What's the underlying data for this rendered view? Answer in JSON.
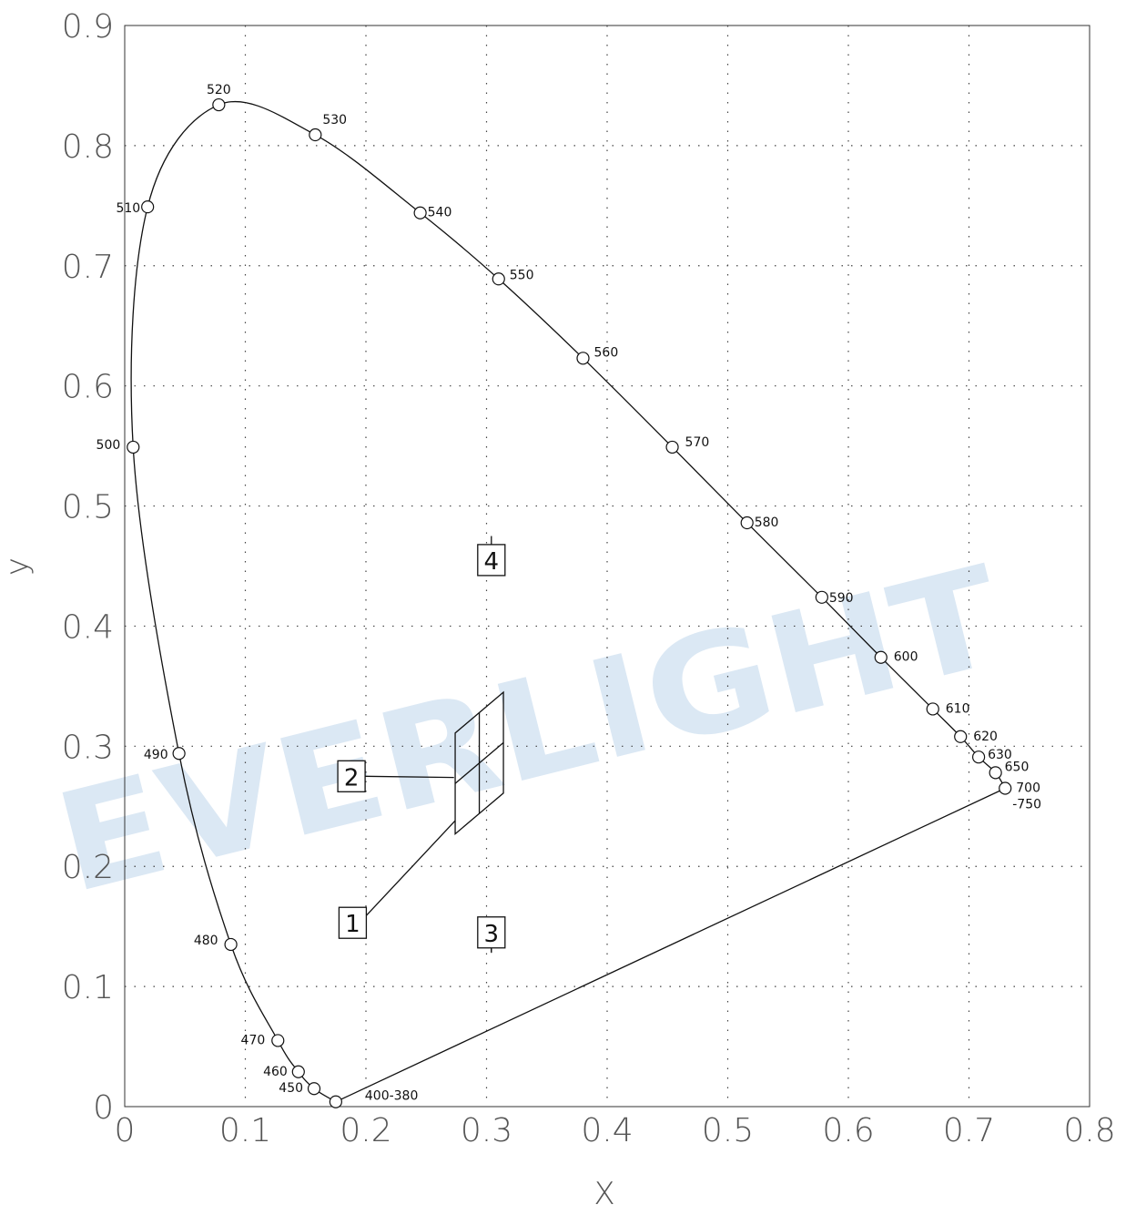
{
  "chart_data": {
    "type": "scatter",
    "title": "",
    "xlabel": "X",
    "ylabel": "y",
    "xlim": [
      0,
      0.8
    ],
    "ylim": [
      0,
      0.9
    ],
    "x_ticks": [
      "0",
      "0.1",
      "0.2",
      "0.3",
      "0.4",
      "0.5",
      "0.6",
      "0.7",
      "0.8"
    ],
    "y_ticks": [
      "0",
      "0.1",
      "0.2",
      "0.3",
      "0.4",
      "0.5",
      "0.6",
      "0.7",
      "0.8",
      "0.9"
    ],
    "grid": true,
    "watermark": "EVERLIGHT",
    "spectral_locus": [
      {
        "label": "400-380",
        "x": 0.175,
        "y": 0.004
      },
      {
        "label": "450",
        "x": 0.157,
        "y": 0.015
      },
      {
        "label": "460",
        "x": 0.144,
        "y": 0.029
      },
      {
        "label": "470",
        "x": 0.127,
        "y": 0.055
      },
      {
        "label": "480",
        "x": 0.088,
        "y": 0.135
      },
      {
        "label": "490",
        "x": 0.045,
        "y": 0.294
      },
      {
        "label": "500",
        "x": 0.007,
        "y": 0.549
      },
      {
        "label": "510",
        "x": 0.019,
        "y": 0.749
      },
      {
        "label": "520",
        "x": 0.078,
        "y": 0.834
      },
      {
        "label": "530",
        "x": 0.158,
        "y": 0.809
      },
      {
        "label": "540",
        "x": 0.245,
        "y": 0.744
      },
      {
        "label": "550",
        "x": 0.31,
        "y": 0.689
      },
      {
        "label": "560",
        "x": 0.38,
        "y": 0.623
      },
      {
        "label": "570",
        "x": 0.454,
        "y": 0.549
      },
      {
        "label": "580",
        "x": 0.516,
        "y": 0.486
      },
      {
        "label": "590",
        "x": 0.578,
        "y": 0.424
      },
      {
        "label": "600",
        "x": 0.627,
        "y": 0.374
      },
      {
        "label": "610",
        "x": 0.67,
        "y": 0.331
      },
      {
        "label": "620",
        "x": 0.693,
        "y": 0.308
      },
      {
        "label": "630",
        "x": 0.708,
        "y": 0.291
      },
      {
        "label": "650",
        "x": 0.722,
        "y": 0.278
      },
      {
        "label": "700\n-750",
        "x": 0.73,
        "y": 0.265
      }
    ],
    "bin_regions": [
      {
        "label": "1",
        "box": [
          0.189,
          0.153
        ],
        "target": [
          0.274,
          0.238
        ]
      },
      {
        "label": "2",
        "box": [
          0.188,
          0.275
        ],
        "target": [
          0.273,
          0.274
        ]
      },
      {
        "label": "3",
        "box": [
          0.304,
          0.145
        ],
        "target": [
          0.304,
          0.129
        ]
      },
      {
        "label": "4",
        "box": [
          0.304,
          0.455
        ],
        "target": [
          0.304,
          0.475
        ]
      }
    ],
    "bin_quad": {
      "corners": [
        [
          0.274,
          0.227
        ],
        [
          0.314,
          0.261
        ],
        [
          0.314,
          0.345
        ],
        [
          0.274,
          0.311
        ]
      ]
    }
  }
}
